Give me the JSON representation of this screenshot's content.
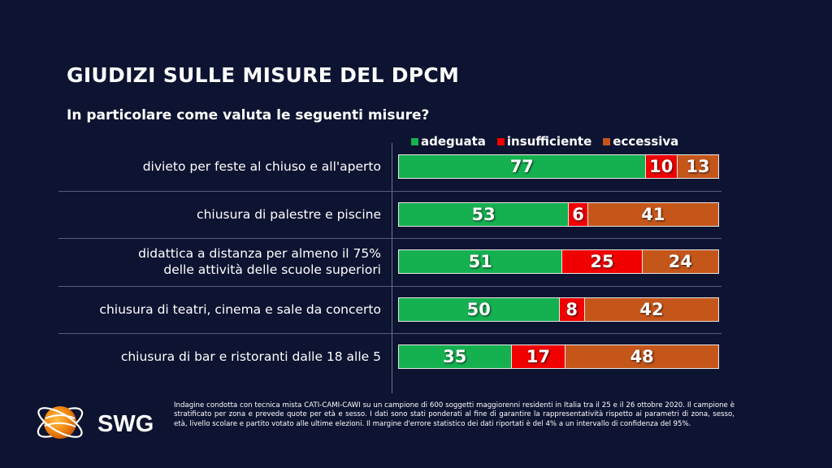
{
  "title": "GIUDIZI SULLE MISURE DEL DPCM",
  "subtitle": "In particolare come valuta le seguenti misure?",
  "colors": {
    "adeguata": "#15b050",
    "insufficiente": "#f00000",
    "eccessiva": "#c5561a",
    "background": "#0d1431"
  },
  "chart_data": {
    "type": "bar",
    "orientation": "horizontal",
    "stacked": true,
    "xlim": [
      0,
      100
    ],
    "legend_position": "top",
    "categories": [
      [
        "divieto per feste al chiuso e all'aperto"
      ],
      [
        "chiusura di palestre e piscine"
      ],
      [
        "didattica a distanza per almeno il 75%",
        "delle attività delle scuole superiori"
      ],
      [
        "chiusura di teatri, cinema e sale da concerto"
      ],
      [
        "chiusura di bar e ristoranti dalle 18 alle 5"
      ]
    ],
    "series": [
      {
        "name": "adeguata",
        "color": "#15b050",
        "values": [
          77,
          53,
          51,
          50,
          35
        ]
      },
      {
        "name": "insufficiente",
        "color": "#f00000",
        "values": [
          10,
          6,
          25,
          8,
          17
        ]
      },
      {
        "name": "eccessiva",
        "color": "#c5561a",
        "values": [
          13,
          41,
          24,
          42,
          48
        ]
      }
    ]
  },
  "logo": {
    "text": "SWG"
  },
  "footnote": "Indagine condotta con tecnica mista CATI-CAMI-CAWI su un campione di 600 soggetti maggiorenni residenti in Italia tra il 25 e il 26 ottobre 2020. Il campione è stratificato per zona e prevede quote per età e sesso. I dati sono stati ponderati al fine di garantire la rappresentatività rispetto ai parametri di zona, sesso, età, livello scolare e partito votato alle ultime elezioni. Il margine d'errore statistico dei dati riportati è del 4% a un intervallo di confidenza del 95%."
}
